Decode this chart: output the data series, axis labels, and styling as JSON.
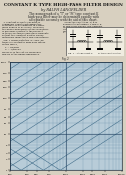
{
  "title": "CONSTANT K TYPE HIGH-PASS FILTER DESIGN",
  "author": "by RALPH LANGFELDER",
  "sub1": "The nomograph of a \"T\" or \"Pi\" type constant K",
  "sub2": "high-pass filter may be determined rapidly with",
  "sub3": "acceptable accuracy with the aid of this chart.",
  "page_bg": "#d8d0c0",
  "text_bg": "#e0d8c8",
  "chart_bg": "#b8ccd8",
  "grid_main_color": "#4a7a9a",
  "grid_dark_color": "#1a3a5a",
  "diag_color_L": "#2a5a7a",
  "diag_color_C": "#2a5a7a",
  "x_min_log": 2.0,
  "x_max_log": 4.0,
  "y_min_log": 0.0,
  "y_max_log": 3.0,
  "L_values": [
    0.0001,
    0.0002,
    0.0005,
    0.001,
    0.002,
    0.005,
    0.01,
    0.02,
    0.05,
    0.1,
    0.2,
    0.5,
    1.0,
    2.0,
    5.0,
    10.0,
    20.0,
    50.0,
    100.0
  ],
  "C_values": [
    0.0001,
    0.0002,
    0.0005,
    0.001,
    0.002,
    0.005,
    0.01,
    0.02,
    0.05,
    0.1,
    0.2,
    0.5,
    1.0,
    2.0,
    5.0,
    10.0,
    20.0,
    50.0,
    100.0
  ],
  "x_major_ticks": [
    100,
    200,
    300,
    400,
    500,
    600,
    700,
    800,
    900,
    1000,
    2000,
    3000,
    4000,
    5000,
    6000,
    7000,
    8000,
    9000,
    10000
  ],
  "x_label_ticks": [
    100,
    200,
    300,
    500,
    1000,
    2000,
    3000,
    5000,
    10000
  ],
  "y_major_ticks": [
    1,
    2,
    3,
    4,
    5,
    6,
    7,
    8,
    9,
    10,
    20,
    30,
    40,
    50,
    60,
    70,
    80,
    90,
    100,
    200,
    300,
    400,
    500,
    600,
    700,
    800,
    900,
    1000
  ],
  "y_label_ticks": [
    1,
    2,
    3,
    5,
    10,
    20,
    30,
    50,
    100,
    200,
    300,
    500,
    1000
  ]
}
